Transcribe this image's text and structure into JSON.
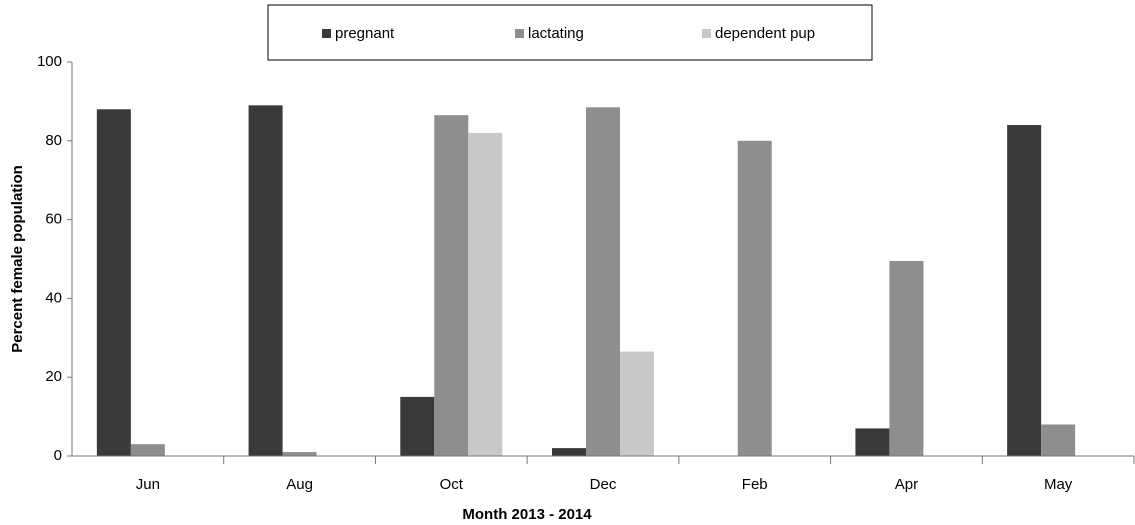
{
  "chart_data": {
    "type": "bar",
    "x_label": "Month 2013 - 2014",
    "y_label": "Percent female population",
    "categories": [
      "Jun",
      "Aug",
      "Oct",
      "Dec",
      "Feb",
      "Apr",
      "May"
    ],
    "series": [
      {
        "name": "pregnant",
        "color": "#3a3a3a",
        "values": [
          88,
          89,
          15,
          2,
          0,
          7,
          84
        ]
      },
      {
        "name": "lactating",
        "color": "#8e8e8e",
        "values": [
          3,
          1,
          86.5,
          88.5,
          80,
          49.5,
          8
        ]
      },
      {
        "name": "dependent pup",
        "color": "#c8c8c8",
        "values": [
          0,
          0,
          82,
          26.5,
          0,
          0,
          0
        ]
      }
    ],
    "ylim": [
      0,
      100
    ],
    "yticks": [
      0,
      20,
      40,
      60,
      80,
      100
    ],
    "grid": false,
    "legend": "top"
  }
}
